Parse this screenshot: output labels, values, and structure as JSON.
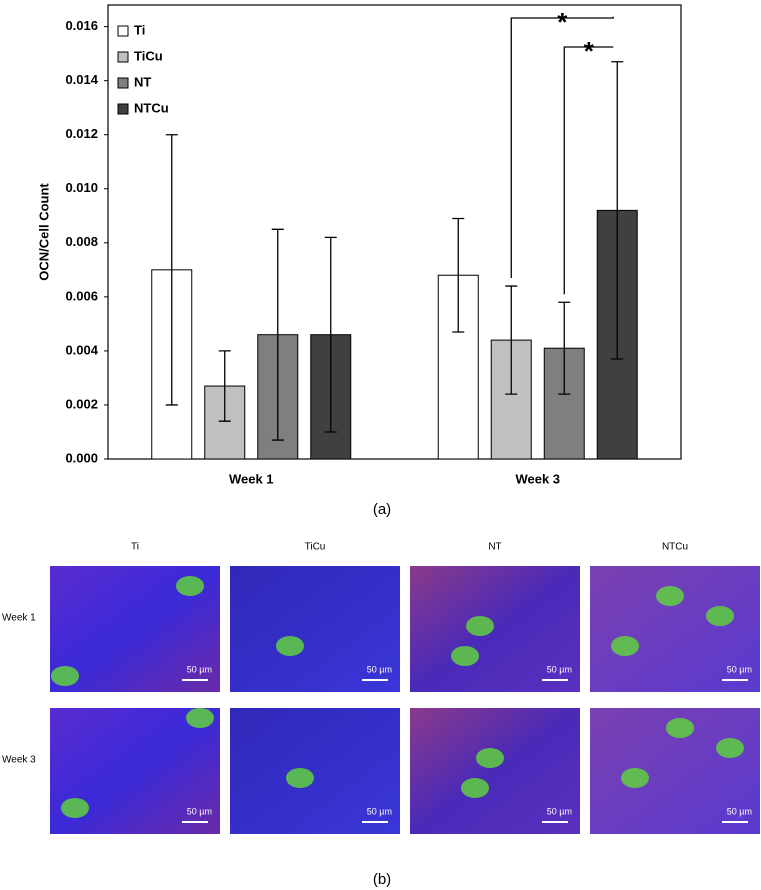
{
  "chart_data": {
    "type": "bar",
    "y_label": "OCN/Cell Count",
    "categories": [
      "Week 1",
      "Week 3"
    ],
    "series": [
      {
        "name": "Ti",
        "color": "#ffffff",
        "values": [
          0.007,
          0.0068
        ],
        "errors": [
          0.005,
          0.0021
        ]
      },
      {
        "name": "TiCu",
        "color": "#c0c0c0",
        "values": [
          0.0027,
          0.0044
        ],
        "errors": [
          0.0013,
          0.002
        ]
      },
      {
        "name": "NT",
        "color": "#7f7f7f",
        "values": [
          0.0046,
          0.0041
        ],
        "errors": [
          0.0039,
          0.0017
        ]
      },
      {
        "name": "NTCu",
        "color": "#404040",
        "values": [
          0.0046,
          0.0092
        ],
        "errors": [
          0.0036,
          0.0055
        ]
      }
    ],
    "ylim": [
      0,
      0.0168
    ],
    "yticks": [
      {
        "value": 0,
        "label": "0.000"
      },
      {
        "value": 0.002,
        "label": "0.002"
      },
      {
        "value": 0.004,
        "label": "0.004"
      },
      {
        "value": 0.006,
        "label": "0.006"
      },
      {
        "value": 0.008,
        "label": "0.008"
      },
      {
        "value": 0.01,
        "label": "0.010"
      },
      {
        "value": 0.012,
        "label": "0.012"
      },
      {
        "value": 0.014,
        "label": "0.014"
      },
      {
        "value": 0.016,
        "label": "0.016"
      }
    ],
    "legend": "top-left",
    "annotations": [
      "*",
      "*"
    ]
  },
  "figure": {
    "label_a": "(a)",
    "label_b": "(b)",
    "columns": [
      "Ti",
      "TiCu",
      "NT",
      "NTCu"
    ],
    "rows": [
      "Week 1",
      "Week 3"
    ],
    "scale_bar": "50 µm"
  }
}
